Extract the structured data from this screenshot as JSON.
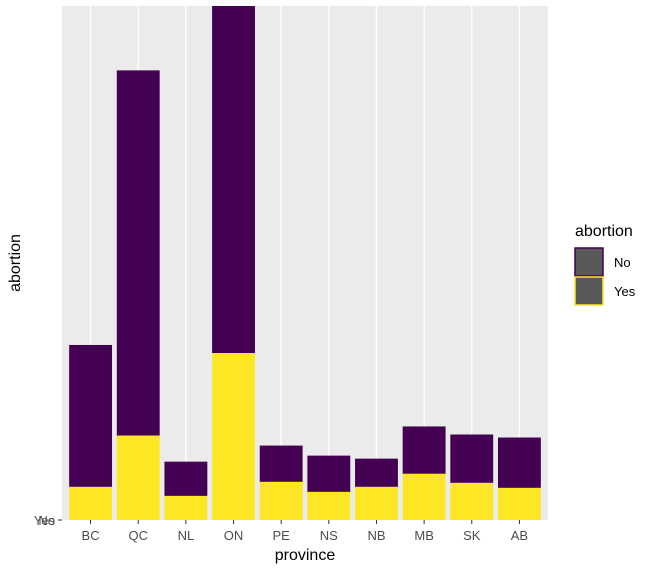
{
  "chart_data": {
    "type": "bar",
    "stacked": true,
    "xlabel": "province",
    "ylabel": "abortion",
    "categories": [
      "BC",
      "QC",
      "NL",
      "ON",
      "PE",
      "NS",
      "NB",
      "MB",
      "SK",
      "AB"
    ],
    "series": [
      {
        "name": "Yes",
        "color": "#FDE725",
        "values": [
          33,
          84,
          24,
          166,
          38,
          28,
          33,
          46,
          37,
          32
        ]
      },
      {
        "name": "No",
        "color": "#440154",
        "values": [
          141,
          363,
          34,
          345,
          36,
          36,
          28,
          47,
          48,
          50
        ]
      }
    ],
    "ylim": [
      0,
      511
    ],
    "y_tick_labels": [
      "No",
      "Yes"
    ],
    "legend": {
      "title": "abortion",
      "entries": [
        "No",
        "Yes"
      ],
      "placement": "right"
    },
    "grid": true
  }
}
